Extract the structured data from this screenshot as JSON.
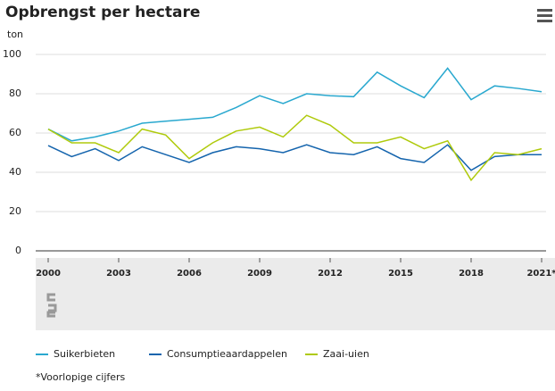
{
  "chart_data": {
    "type": "line",
    "title": "Opbrengst per hectare",
    "y_label": "ton",
    "x": [
      2000,
      2001,
      2002,
      2003,
      2004,
      2005,
      2006,
      2007,
      2008,
      2009,
      2010,
      2011,
      2012,
      2013,
      2014,
      2015,
      2016,
      2017,
      2018,
      2019,
      2020,
      2021
    ],
    "xlim": [
      2000,
      2021
    ],
    "xticks": [
      2000,
      2003,
      2006,
      2009,
      2012,
      2015,
      2018,
      {
        "value": 2021,
        "label": "2021*"
      }
    ],
    "ylim": [
      0,
      100
    ],
    "yticks": [
      0,
      20,
      40,
      60,
      80,
      100
    ],
    "grid": true,
    "series": [
      {
        "name": "Suikerbieten",
        "color": "#29a8cf",
        "values": [
          62,
          56,
          58,
          61,
          65,
          66,
          67,
          68,
          73,
          79,
          75,
          80,
          79,
          78.5,
          91,
          84,
          78,
          93,
          77,
          84,
          82.7,
          81
        ]
      },
      {
        "name": "Consumptieaardappelen",
        "color": "#1464ad",
        "values": [
          53.6,
          48,
          52,
          46,
          53,
          49,
          45,
          50,
          53,
          52,
          50,
          54,
          50,
          49,
          53,
          47,
          45,
          54,
          41,
          48,
          49,
          49
        ]
      },
      {
        "name": "Zaai-uien",
        "color": "#afca0b",
        "values": [
          62,
          55,
          55,
          50,
          62,
          59,
          47,
          55,
          61,
          63,
          58,
          69,
          64,
          55,
          55,
          58,
          52,
          56,
          36,
          50,
          49,
          52
        ]
      }
    ],
    "footnote": "*Voorlopige cijfers"
  }
}
